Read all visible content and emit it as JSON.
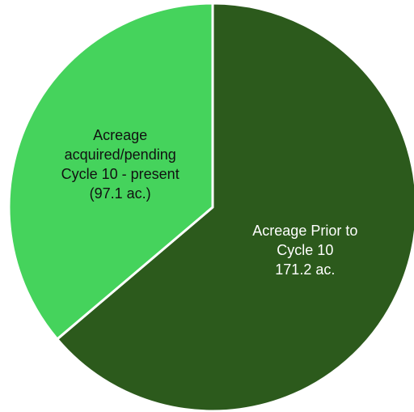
{
  "chart_data": {
    "type": "pie",
    "categories": [
      "Acreage Prior to Cycle 10",
      "Acreage acquired/pending Cycle 10 - present"
    ],
    "values": [
      171.2,
      97.1
    ],
    "value_labels": [
      "171.2 ac.",
      "(97.1 ac.)"
    ],
    "colors": [
      "#2c5a1c",
      "#45d35c"
    ],
    "start_angle": 0,
    "direction": "clockwise"
  }
}
